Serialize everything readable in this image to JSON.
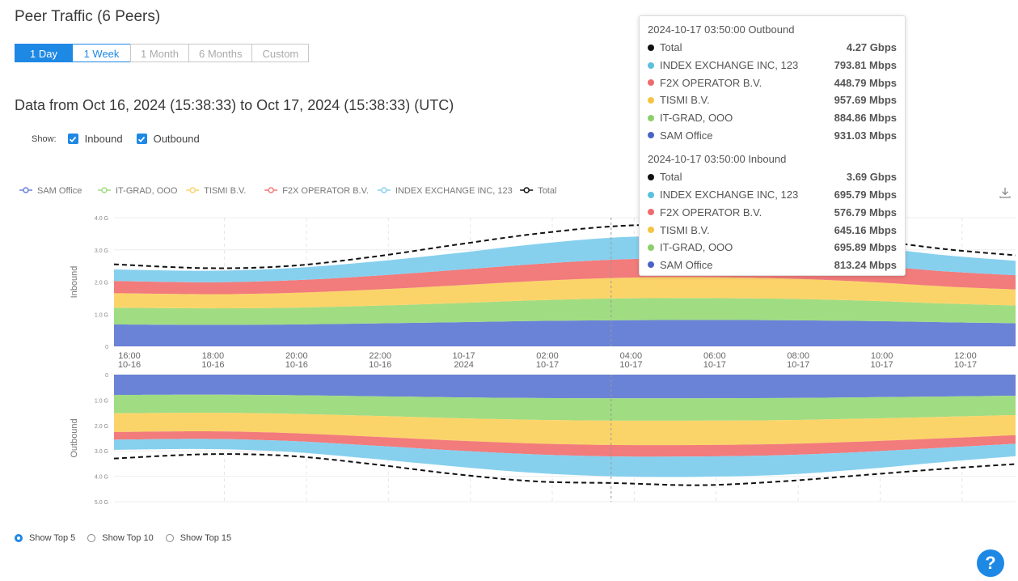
{
  "page": {
    "title": "Peer Traffic (6 Peers)",
    "range_buttons": [
      "1 Day",
      "1 Week",
      "1 Month",
      "6 Months",
      "Custom"
    ],
    "range_text": "Data from Oct 16, 2024 (15:38:33) to Oct 17, 2024 (15:38:33) (UTC)",
    "show_label": "Show:",
    "show_inbound": "Inbound",
    "show_outbound": "Outbound",
    "top_options": [
      "Show Top 5",
      "Show Top 10",
      "Show Top 15"
    ],
    "help": "?",
    "accent": "#1e88e5"
  },
  "tooltip": {
    "outbound_header": "2024-10-17 03:50:00 Outbound",
    "outbound_rows": [
      {
        "name": "Total",
        "value": "4.27 Gbps",
        "color": "#111111"
      },
      {
        "name": "INDEX EXCHANGE INC, 123",
        "value": "793.81 Mbps",
        "color": "#5bc0de"
      },
      {
        "name": "F2X OPERATOR B.V.",
        "value": "448.79 Mbps",
        "color": "#ef6b6b"
      },
      {
        "name": "TISMI B.V.",
        "value": "957.69 Mbps",
        "color": "#f5c542"
      },
      {
        "name": "IT-GRAD, OOO",
        "value": "884.86 Mbps",
        "color": "#8bcf6a"
      },
      {
        "name": "SAM Office",
        "value": "931.03 Mbps",
        "color": "#4a63c6"
      }
    ],
    "inbound_header": "2024-10-17 03:50:00 Inbound",
    "inbound_rows": [
      {
        "name": "Total",
        "value": "3.69 Gbps",
        "color": "#111111"
      },
      {
        "name": "INDEX EXCHANGE INC, 123",
        "value": "695.79 Mbps",
        "color": "#5bc0de"
      },
      {
        "name": "F2X OPERATOR B.V.",
        "value": "576.79 Mbps",
        "color": "#ef6b6b"
      },
      {
        "name": "TISMI B.V.",
        "value": "645.16 Mbps",
        "color": "#f5c542"
      },
      {
        "name": "IT-GRAD, OOO",
        "value": "695.89 Mbps",
        "color": "#8bcf6a"
      },
      {
        "name": "SAM Office",
        "value": "813.24 Mbps",
        "color": "#4a63c6"
      }
    ]
  },
  "chart_data": {
    "type": "area",
    "stacked": true,
    "legend": [
      {
        "name": "SAM Office",
        "color": "#6a83d6"
      },
      {
        "name": "IT-GRAD, OOO",
        "color": "#a0dc82"
      },
      {
        "name": "TISMI B.V.",
        "color": "#fbd469"
      },
      {
        "name": "F2X OPERATOR B.V.",
        "color": "#f27b7b"
      },
      {
        "name": "INDEX EXCHANGE INC, 123",
        "color": "#86d0ee"
      },
      {
        "name": "Total",
        "color": "#111111"
      }
    ],
    "legend_position": "top-left",
    "x_ticks": [
      [
        "16:00",
        "10-16"
      ],
      [
        "18:00",
        "10-16"
      ],
      [
        "20:00",
        "10-16"
      ],
      [
        "22:00",
        "10-16"
      ],
      [
        "10-17",
        "2024"
      ],
      [
        "02:00",
        "10-17"
      ],
      [
        "04:00",
        "10-17"
      ],
      [
        "06:00",
        "10-17"
      ],
      [
        "08:00",
        "10-17"
      ],
      [
        "10:00",
        "10-17"
      ],
      [
        "12:00",
        "10-17"
      ]
    ],
    "x_hours": [
      15.7,
      18,
      20,
      22,
      24,
      26,
      28,
      30,
      32,
      34,
      36,
      37.7
    ],
    "inbound": {
      "ylabel": "Inbound",
      "y_ticks": [
        "0",
        "1.0 G",
        "2.0 G",
        "3.0 G",
        "4.0 G"
      ],
      "ylim": [
        0,
        4
      ],
      "series": [
        {
          "name": "SAM Office",
          "values": [
            0.68,
            0.67,
            0.68,
            0.71,
            0.75,
            0.79,
            0.81,
            0.82,
            0.81,
            0.79,
            0.75,
            0.72
          ]
        },
        {
          "name": "IT-GRAD, OOO",
          "values": [
            0.52,
            0.51,
            0.52,
            0.55,
            0.59,
            0.64,
            0.68,
            0.68,
            0.67,
            0.63,
            0.58,
            0.55
          ]
        },
        {
          "name": "TISMI B.V.",
          "values": [
            0.45,
            0.44,
            0.46,
            0.5,
            0.55,
            0.6,
            0.64,
            0.65,
            0.63,
            0.59,
            0.53,
            0.5
          ]
        },
        {
          "name": "F2X OPERATOR B.V.",
          "values": [
            0.38,
            0.37,
            0.39,
            0.43,
            0.48,
            0.53,
            0.57,
            0.58,
            0.56,
            0.52,
            0.47,
            0.44
          ]
        },
        {
          "name": "INDEX EXCHANGE INC, 123",
          "values": [
            0.36,
            0.36,
            0.38,
            0.44,
            0.52,
            0.62,
            0.69,
            0.7,
            0.66,
            0.58,
            0.5,
            0.45
          ]
        },
        {
          "name": "Total",
          "values": [
            2.55,
            2.43,
            2.5,
            2.78,
            3.15,
            3.5,
            3.74,
            3.78,
            3.65,
            3.34,
            3.02,
            2.83
          ]
        }
      ]
    },
    "outbound": {
      "ylabel": "Outbound",
      "y_ticks": [
        "0",
        "1.0 G",
        "2.0 G",
        "3.0 G",
        "4.0 G",
        "5.0 G"
      ],
      "ylim": [
        0,
        5
      ],
      "inverted": true,
      "series": [
        {
          "name": "SAM Office",
          "values": [
            0.8,
            0.79,
            0.81,
            0.85,
            0.89,
            0.92,
            0.93,
            0.93,
            0.92,
            0.89,
            0.86,
            0.83
          ]
        },
        {
          "name": "IT-GRAD, OOO",
          "values": [
            0.72,
            0.71,
            0.73,
            0.77,
            0.82,
            0.86,
            0.88,
            0.88,
            0.87,
            0.84,
            0.8,
            0.76
          ]
        },
        {
          "name": "TISMI B.V.",
          "values": [
            0.74,
            0.73,
            0.76,
            0.82,
            0.88,
            0.93,
            0.96,
            0.96,
            0.94,
            0.9,
            0.84,
            0.79
          ]
        },
        {
          "name": "F2X OPERATOR B.V.",
          "values": [
            0.3,
            0.3,
            0.31,
            0.35,
            0.39,
            0.43,
            0.45,
            0.45,
            0.44,
            0.41,
            0.37,
            0.34
          ]
        },
        {
          "name": "INDEX EXCHANGE INC, 123",
          "values": [
            0.4,
            0.4,
            0.43,
            0.52,
            0.63,
            0.73,
            0.79,
            0.8,
            0.77,
            0.68,
            0.56,
            0.49
          ]
        },
        {
          "name": "Total",
          "values": [
            3.3,
            3.13,
            3.2,
            3.52,
            3.91,
            4.2,
            4.27,
            4.35,
            4.2,
            3.95,
            3.7,
            3.52
          ]
        }
      ]
    },
    "cursor_hour": 27.83
  }
}
